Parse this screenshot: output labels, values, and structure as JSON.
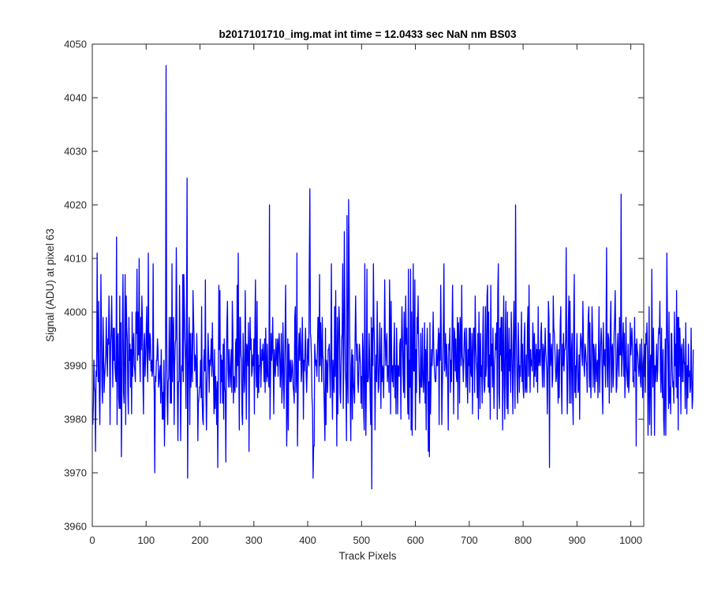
{
  "chart_data": {
    "type": "line",
    "title": "b2017101710_img.mat int time = 12.0433 sec  NaN nm BS03",
    "xlabel": "Track Pixels",
    "ylabel": "Signal (ADU) at pixel 63",
    "xlim": [
      0,
      1024
    ],
    "ylim": [
      3960,
      4050
    ],
    "xticks": [
      0,
      100,
      200,
      300,
      400,
      500,
      600,
      700,
      800,
      900,
      1000
    ],
    "yticks": [
      3960,
      3970,
      3980,
      3990,
      4000,
      4010,
      4020,
      4030,
      4040,
      4050
    ],
    "grid": false,
    "line_color": "#0000ff",
    "series": [
      {
        "x_start": 1,
        "x_step": 1,
        "values": [
          3979,
          3983,
          3991,
          3986,
          3985,
          3974,
          3989,
          3988,
          4011,
          3994,
          3987,
          4002,
          3985,
          3979,
          3990,
          4007,
          3996,
          3986,
          3983,
          3999,
          3993,
          3985,
          3988,
          3990,
          3992,
          3999,
          3992,
          3988,
          3995,
          3994,
          4003,
          3996,
          3979,
          3994,
          3996,
          4003,
          3994,
          3986,
          3997,
          3991,
          3997,
          3990,
          3988,
          3987,
          4014,
          3979,
          3995,
          3996,
          3984,
          3982,
          4003,
          3982,
          3998,
          3973,
          3985,
          3998,
          4007,
          3985,
          3983,
          3994,
          4007,
          3979,
          4003,
          3997,
          3995,
          3985,
          3981,
          3999,
          3991,
          3994,
          3986,
          3993,
          3981,
          4000,
          3988,
          3994,
          3996,
          3990,
          3989,
          3987,
          4000,
          3996,
          4008,
          3991,
          4000,
          3992,
          4010,
          3992,
          3987,
          3999,
          3993,
          4003,
          3999,
          3988,
          3981,
          3994,
          3996,
          3988,
          3991,
          3995,
          4001,
          3991,
          3987,
          4011,
          3994,
          3991,
          3996,
          3995,
          3989,
          3991,
          3988,
          3989,
          4009,
          3989,
          3985,
          3970,
          3988,
          3987,
          3991,
          3991,
          3995,
          3993,
          3986,
          3987,
          3989,
          3990,
          3983,
          3993,
          3987,
          3980,
          3985,
          3980,
          3991,
          3975,
          3983,
          3990,
          4046,
          3998,
          3984,
          3979,
          3987,
          3988,
          3999,
          3990,
          3983,
          3999,
          3983,
          4009,
          3987,
          3996,
          3999,
          3979,
          3990,
          3994,
          3995,
          4012,
          3999,
          3986,
          3976,
          3987,
          3987,
          4005,
          3993,
          3976,
          3986,
          3990,
          3989,
          4007,
          3987,
          4007,
          4001,
          3995,
          3991,
          3982,
          3999,
          4025,
          3969,
          3985,
          3995,
          3999,
          3979,
          3996,
          3986,
          3989,
          3996,
          3987,
          4004,
          3999,
          3995,
          3989,
          3992,
          3991,
          3986,
          3996,
          3990,
          3976,
          3983,
          3984,
          3986,
          3986,
          3991,
          3984,
          4001,
          3984,
          3980,
          3979,
          3991,
          3993,
          3989,
          4006,
          3985,
          3978,
          3987,
          3990,
          3996,
          3992,
          3985,
          3991,
          3990,
          3992,
          3995,
          3988,
          3998,
          3991,
          3988,
          3981,
          3993,
          3982,
          3988,
          3985,
          3979,
          3987,
          3971,
          3987,
          4005,
          3993,
          4004,
          3983,
          3992,
          3987,
          3991,
          3983,
          3994,
          3980,
          3995,
          3986,
          3985,
          3972,
          3990,
          3998,
          4002,
          3989,
          3986,
          3993,
          3990,
          3986,
          3989,
          3993,
          3985,
          4002,
          3996,
          3983,
          3988,
          3987,
          3985,
          3994,
          3995,
          3986,
          4005,
          3990,
          4011,
          3990,
          3978,
          3999,
          3999,
          3992,
          3991,
          3981,
          3979,
          3996,
          3991,
          3985,
          3987,
          4004,
          3993,
          3980,
          3994,
          3993,
          3990,
          3998,
          3974,
          3991,
          3999,
          3993,
          3995,
          3988,
          3989,
          3992,
          3990,
          3995,
          3981,
          3998,
          4006,
          3989,
          3986,
          4002,
          3984,
          3992,
          3985,
          3990,
          3990,
          3995,
          3986,
          3990,
          3993,
          3991,
          3994,
          3991,
          3987,
          3995,
          3985,
          3997,
          3989,
          3987,
          3994,
          3988,
          3988,
          3986,
          4020,
          3980,
          3988,
          3996,
          3991,
          3993,
          3999,
          3990,
          3981,
          3993,
          3990,
          3988,
          3995,
          3992,
          3990,
          3995,
          3988,
          3994,
          3996,
          3992,
          3986,
          3990,
          3996,
          3983,
          3986,
          3998,
          3991,
          3982,
          3988,
          3996,
          4005,
          3992,
          3975,
          3982,
          3995,
          3978,
          3994,
          3990,
          3987,
          3991,
          3987,
          3988,
          3991,
          3990,
          3986,
          3985,
          3983,
          3999,
          4001,
          3985,
          3988,
          4011,
          3975,
          3983,
          3993,
          3996,
          3991,
          3997,
          3994,
          3987,
          3989,
          3999,
          3993,
          3980,
          3991,
          3989,
          3993,
          3997,
          3989,
          3985,
          3989,
          3995,
          3992,
          3990,
          4009,
          4023,
          3996,
          3995,
          3991,
          3984,
          3982,
          3969,
          3975,
          3975,
          3994,
          3992,
          3990,
          3991,
          3988,
          3993,
          3999,
          3999,
          3987,
          4007,
          3990,
          3998,
          3993,
          3987,
          3999,
          3992,
          3991,
          3986,
          3981,
          3976,
          3997,
          3979,
          3991,
          3990,
          3985,
          3993,
          3993,
          3994,
          3989,
          3984,
          3993,
          4009,
          3987,
          3980,
          3991,
          3987,
          3985,
          4001,
          3988,
          4004,
          3991,
          3975,
          3999,
          3981,
          3994,
          4001,
          3998,
          3985,
          3983,
          3990,
          3995,
          3996,
          4009,
          3982,
          3992,
          4015,
          4001,
          3989,
          3986,
          3976,
          4018,
          3987,
          3983,
          4021,
          4008,
          3996,
          3984,
          3976,
          3990,
          3993,
          3980,
          3992,
          3987,
          3985,
          3983,
          3995,
          4003,
          3995,
          3991,
          3994,
          3987,
          3985,
          3990,
          3994,
          3992,
          3990,
          3983,
          3988,
          3982,
          3996,
          3993,
          3981,
          3978,
          4009,
          3990,
          3977,
          3987,
          4008,
          3987,
          3987,
          3988,
          3996,
          3991,
          3984,
          3979,
          3999,
          3967,
          3997,
          3990,
          4009,
          3998,
          3994,
          3978,
          3988,
          3992,
          3987,
          4002,
          3994,
          3985,
          3986,
          3992,
          3998,
          3989,
          3982,
          3997,
          3987,
          3990,
          3989,
          3984,
          3993,
          4006,
          3995,
          3990,
          3994,
          3996,
          3987,
          3990,
          3990,
          3985,
          4006,
          3998,
          3981,
          4002,
          3990,
          3987,
          3990,
          3986,
          3993,
          3998,
          3984,
          3990,
          3981,
          3997,
          3991,
          3981,
          3990,
          3989,
          3988,
          3994,
          3995,
          3980,
          3993,
          4001,
          3995,
          3989,
          3985,
          4000,
          3984,
          3995,
          4003,
          3994,
          3997,
          3987,
          3981,
          4008,
          3980,
          3991,
          3986,
          4008,
          3978,
          4000,
          3977,
          3990,
          4009,
          3989,
          3989,
          4006,
          3978,
          3993,
          3985,
          3999,
          3996,
          4003,
          3994,
          3988,
          3983,
          3987,
          3996,
          3986,
          3986,
          3997,
          3989,
          3985,
          3988,
          3998,
          3983,
          3993,
          3978,
          3992,
          3997,
          3988,
          3974,
          3987,
          3973,
          3998,
          3981,
          3987,
          3993,
          3990,
          3994,
          4000,
          3993,
          3990,
          3988,
          3987,
          3987,
          3993,
          3990,
          3990,
          3994,
          3997,
          3979,
          3996,
          3991,
          4005,
          3996,
          3979,
          3986,
          3991,
          3998,
          4009,
          3989,
          3991,
          3996,
          3988,
          3994,
          3991,
          3987,
          3978,
          3994,
          3993,
          3997,
          3985,
          3991,
          3987,
          3996,
          4005,
          3993,
          3981,
          3997,
          3996,
          3989,
          3995,
          3988,
          3987,
          3999,
          3980,
          3998,
          3994,
          3983,
          3999,
          3997,
          3990,
          4005,
          3992,
          3991,
          3987,
          3992,
          3996,
          3997,
          3991,
          3986,
          3997,
          3989,
          3983,
          3993,
          3990,
          3997,
          3985,
          3997,
          3989,
          3988,
          3996,
          3981,
          3992,
          3997,
          3997,
          3985,
          4003,
          3995,
          3991,
          3989,
          3984,
          3996,
          3980,
          4000,
          3992,
          3982,
          3996,
          3988,
          3990,
          3983,
          3995,
          4001,
          3988,
          3985,
          3986,
          4001,
          3988,
          3990,
          4003,
          4005,
          3986,
          4000,
          3985,
          3992,
          3980,
          4005,
          3990,
          3994,
          3986,
          3997,
          3989,
          3982,
          3990,
          3992,
          3996,
          3993,
          3998,
          3980,
          4004,
          4009,
          3985,
          3982,
          3997,
          3992,
          3999,
          3989,
          3999,
          3978,
          3993,
          4003,
          3986,
          3980,
          3995,
          4002,
          3987,
          3982,
          4000,
          3981,
          3990,
          3997,
          3989,
          3993,
          3985,
          4000,
          3994,
          3988,
          3981,
          3995,
          4002,
          3989,
          3982,
          4020,
          3998,
          3991,
          3986,
          3983,
          3998,
          3993,
          3985,
          3990,
          3988,
          3993,
          4000,
          3987,
          3994,
          3986,
          3984,
          3995,
          3998,
          3985,
          3986,
          3992,
          3985,
          3997,
          4001,
          3988,
          4005,
          3992,
          3985,
          3993,
          3990,
          3991,
          3989,
          3998,
          3995,
          3986,
          3996,
          3988,
          3990,
          3994,
          3987,
          3993,
          3985,
          4001,
          3990,
          3991,
          3993,
          3990,
          3996,
          3998,
          3991,
          3986,
          3994,
          3993,
          3986,
          3992,
          3997,
          3993,
          3991,
          3989,
          3981,
          3989,
          4002,
          3999,
          3971,
          3996,
          3990,
          3992,
          3994,
          3986,
          3988,
          4003,
          3997,
          3996,
          3993,
          3990,
          3987,
          3988,
          3994,
          3990,
          3983,
          3993,
          3984,
          3991,
          3998,
          4001,
          3987,
          3981,
          3994,
          3990,
          3996,
          3989,
          3993,
          3993,
          3995,
          4012,
          3992,
          3981,
          3988,
          3998,
          4003,
          3983,
          4002,
          3993,
          3983,
          3993,
          3996,
          3984,
          3979,
          3999,
          4007,
          3985,
          3990,
          3984,
          3990,
          3996,
          3990,
          3985,
          3986,
          3992,
          3980,
          3993,
          3996,
          3995,
          3992,
          3990,
          4002,
          3995,
          3990,
          3988,
          3994,
          3993,
          3991,
          3990,
          3985,
          3994,
          3999,
          4001,
          3986,
          3998,
          3988,
          3984,
          3992,
          4001,
          3996,
          3986,
          3994,
          3993,
          3985,
          3990,
          3994,
          3987,
          3990,
          3991,
          3984,
          3993,
          4001,
          3985,
          3990,
          3994,
          3997,
          3994,
          3985,
          3981,
          3998,
          3991,
          3990,
          3993,
          3986,
          3996,
          4012,
          3990,
          3986,
          3996,
          3995,
          3983,
          3990,
          3997,
          4002,
          3985,
          3993,
          3994,
          3986,
          3988,
          3996,
          3999,
          4004,
          3995,
          3985,
          3986,
          3993,
          3996,
          3990,
          3988,
          3999,
          3992,
          3992,
          4022,
          3988,
          3991,
          3995,
          3998,
          3988,
          3996,
          3984,
          3988,
          3999,
          3990,
          3988,
          3986,
          3994,
          3985,
          3987,
          3991,
          3998,
          3992,
          3994,
          3997,
          3994,
          3987,
          3988,
          3986,
          3999,
          3989,
          3994,
          3975,
          3995,
          3993,
          3992,
          3990,
          3988,
          3990,
          3994,
          3987,
          3986,
          3995,
          3991,
          3984,
          3990,
          3992,
          3988,
          3994,
          3985,
          3996,
          3994,
          3998,
          3992,
          3977,
          3986,
          4001,
          3979,
          3990,
          3992,
          3977,
          4008,
          3993,
          3986,
          3997,
          3991,
          3977,
          3990,
          3987,
          3990,
          3994,
          3987,
          3989,
          3995,
          3997,
          3996,
          4002,
          3989,
          3985,
          3997,
          3988,
          3984,
          3993,
          3980,
          3977,
          3987,
          3995,
          3977,
          3992,
          4011,
          3998,
          3991,
          3982,
          4000,
          3983,
          3986,
          3981,
          3996,
          3996,
          3989,
          3986,
          3987,
          3983,
          4000,
          3990,
          3994,
          3986,
          4004,
          3984,
          3999,
          3978,
          3999,
          3988,
          3997,
          3993,
          3981,
          3993,
          3994,
          3987,
          3987,
          3995,
          3991,
          3990,
          3982,
          3998,
          3989,
          3981,
          3990,
          3984,
          3994,
          3988,
          3989,
          3985,
          3986,
          3997,
          3988,
          3982,
          3984,
          3993
        ]
      }
    ]
  }
}
